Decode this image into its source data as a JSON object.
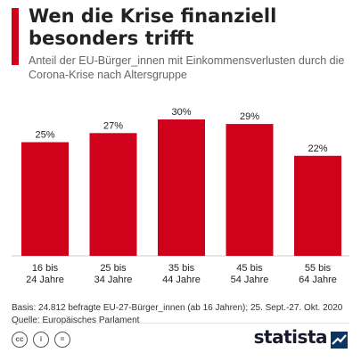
{
  "title": "Wen die Krise finanziell besonders trifft",
  "subtitle": "Anteil der EU-Bürger_innen mit Einkommensverlusten durch die Corona-Krise nach Altersgruppe",
  "chart_data": {
    "type": "bar",
    "categories": [
      [
        "16 bis",
        "24 Jahre"
      ],
      [
        "25 bis",
        "34 Jahre"
      ],
      [
        "35 bis",
        "44 Jahre"
      ],
      [
        "45 bis",
        "54 Jahre"
      ],
      [
        "55 bis",
        "64 Jahre"
      ]
    ],
    "values": [
      25,
      27,
      30,
      29,
      22
    ],
    "value_labels": [
      "25%",
      "27%",
      "30%",
      "29%",
      "22%"
    ],
    "unit": "%",
    "ylim": [
      0,
      30
    ],
    "grid": false,
    "bar_color": "#d0021b"
  },
  "notes": {
    "basis": "Basis: 24.812 befragte EU-27-Bürger_innen (ab 16 Jahren); 25. Sept.-27. Okt. 2020",
    "source": "Quelle: Europäisches Parlament"
  },
  "footer": {
    "license_icons": [
      "cc-icon",
      "attribution-icon",
      "no-derivatives-icon"
    ],
    "brand": "statista"
  },
  "colors": {
    "accent": "#d0021b",
    "text": "#222222",
    "subtitle": "#666666"
  }
}
